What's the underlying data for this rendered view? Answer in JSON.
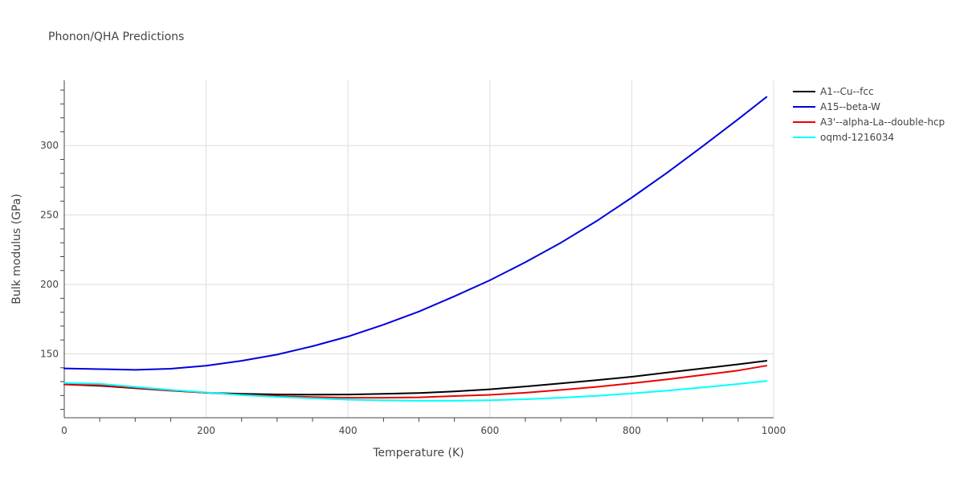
{
  "chart_data": {
    "type": "line",
    "title": "Phonon/QHA Predictions",
    "xlabel": "Temperature (K)",
    "ylabel": "Bulk modulus (GPa)",
    "xlim": [
      0,
      1000
    ],
    "ylim": [
      104,
      347
    ],
    "xticks": [
      0,
      200,
      400,
      600,
      800,
      1000
    ],
    "yticks": [
      150,
      200,
      250,
      300
    ],
    "grid": true,
    "legend_position": "top-right",
    "series": [
      {
        "name": "A1--Cu--fcc",
        "color": "#000000",
        "x": [
          0,
          50,
          100,
          150,
          200,
          250,
          300,
          350,
          400,
          450,
          500,
          550,
          600,
          650,
          700,
          750,
          800,
          850,
          900,
          950,
          990
        ],
        "y": [
          128,
          127,
          125.3,
          123.5,
          122,
          121.2,
          120.8,
          120.6,
          120.7,
          121.2,
          121.8,
          123,
          124.5,
          126.5,
          128.7,
          131,
          133.5,
          136.5,
          139.5,
          142.5,
          145
        ]
      },
      {
        "name": "A15--beta-W",
        "color": "#0000dd",
        "x": [
          0,
          50,
          100,
          150,
          200,
          250,
          300,
          350,
          400,
          450,
          500,
          550,
          600,
          650,
          700,
          750,
          800,
          850,
          900,
          950,
          990
        ],
        "y": [
          139.5,
          139,
          138.5,
          139.3,
          141.5,
          145,
          149.5,
          155.5,
          162.5,
          171,
          180.5,
          191.5,
          203,
          216,
          230,
          245.5,
          262.5,
          280.5,
          299.5,
          319,
          335
        ]
      },
      {
        "name": "A3'--alpha-La--double-hcp",
        "color": "#ee0000",
        "x": [
          0,
          50,
          100,
          150,
          200,
          250,
          300,
          350,
          400,
          450,
          500,
          550,
          600,
          650,
          700,
          750,
          800,
          850,
          900,
          950,
          990
        ],
        "y": [
          128,
          127.5,
          125.5,
          123.7,
          122,
          120.5,
          119.6,
          118.9,
          118.4,
          118.4,
          118.7,
          119.6,
          120.5,
          122,
          124,
          126.2,
          128.8,
          131.6,
          134.8,
          138,
          141.5
        ]
      },
      {
        "name": "oqmd-1216034",
        "color": "#00ffff",
        "x": [
          0,
          50,
          100,
          150,
          200,
          250,
          300,
          350,
          400,
          450,
          500,
          550,
          600,
          650,
          700,
          750,
          800,
          850,
          900,
          950,
          990
        ],
        "y": [
          129,
          128.4,
          126.2,
          124,
          122.2,
          120.4,
          119,
          118,
          117,
          116.5,
          116.2,
          116.2,
          116.6,
          117.3,
          118.4,
          119.8,
          121.5,
          123.5,
          125.8,
          128.3,
          130.5
        ]
      }
    ]
  }
}
